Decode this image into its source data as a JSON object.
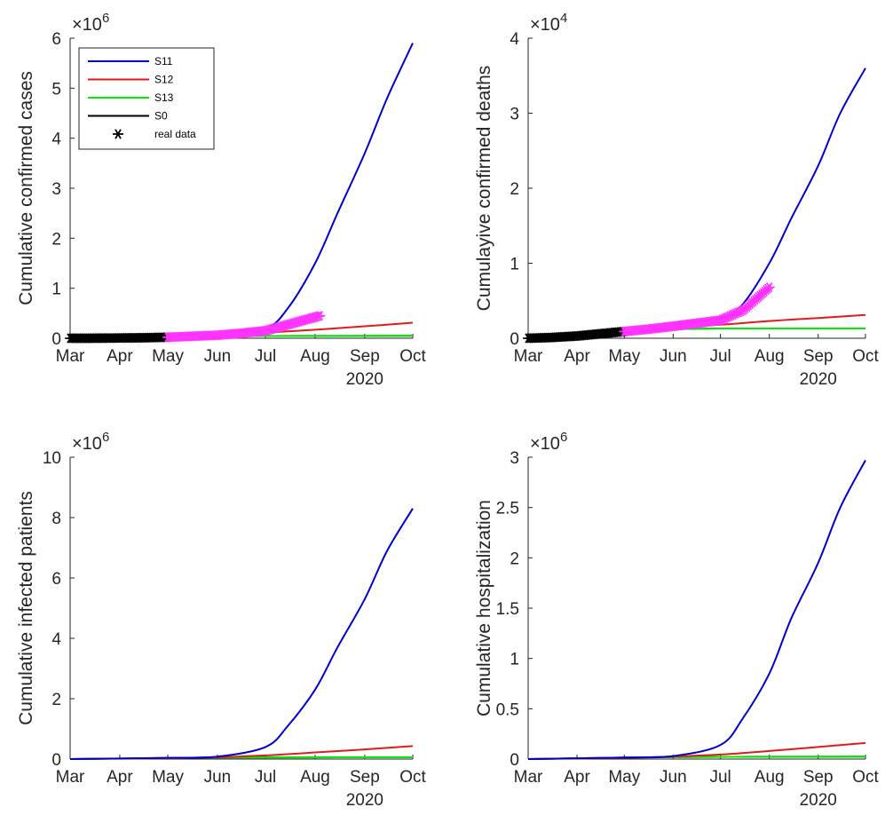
{
  "colors": {
    "S11": "#0000cc",
    "S12": "#e41a1a",
    "S13": "#00ee00",
    "S0": "#000000",
    "real_before": "#000000",
    "real_after": "#ff33ff",
    "axis": "#262626"
  },
  "legend": {
    "entries": [
      {
        "label": "S11",
        "color": "#0000cc",
        "kind": "line"
      },
      {
        "label": "S12",
        "color": "#e41a1a",
        "kind": "line"
      },
      {
        "label": "S13",
        "color": "#00ee00",
        "kind": "line"
      },
      {
        "label": "S0",
        "color": "#000000",
        "kind": "line"
      },
      {
        "label": "real data",
        "color": "#000000",
        "kind": "marker"
      }
    ],
    "location": "top-left of first panel"
  },
  "chart_data": [
    {
      "type": "line",
      "ylabel": "Cumulative confirmed cases",
      "exponent": "6",
      "xlabel": "2020",
      "x_ticks": [
        "Mar",
        "Apr",
        "May",
        "Jun",
        "Jul",
        "Aug",
        "Sep",
        "Oct"
      ],
      "xlim": [
        "2020-03-01",
        "2020-10-01"
      ],
      "ylim": [
        0,
        6
      ],
      "y_ticks": [
        "0",
        "1",
        "2",
        "3",
        "4",
        "5",
        "6"
      ],
      "series": [
        {
          "name": "S11",
          "x": [
            "2020-03-01",
            "2020-05-01",
            "2020-06-01",
            "2020-07-01",
            "2020-07-15",
            "2020-08-01",
            "2020-08-15",
            "2020-09-01",
            "2020-09-15",
            "2020-10-01"
          ],
          "y": [
            0,
            0.02,
            0.07,
            0.2,
            0.6,
            1.5,
            2.5,
            3.7,
            4.8,
            5.9
          ]
        },
        {
          "name": "S12",
          "x": [
            "2020-03-01",
            "2020-05-01",
            "2020-06-01",
            "2020-07-01",
            "2020-08-01",
            "2020-09-01",
            "2020-10-01"
          ],
          "y": [
            0,
            0.02,
            0.06,
            0.11,
            0.17,
            0.24,
            0.31
          ]
        },
        {
          "name": "S13",
          "x": [
            "2020-03-01",
            "2020-06-01",
            "2020-10-01"
          ],
          "y": [
            0,
            0.04,
            0.05
          ]
        },
        {
          "name": "S0",
          "x": [
            "2020-03-01",
            "2020-06-01",
            "2020-10-01"
          ],
          "y": [
            0,
            0.04,
            0.05
          ]
        }
      ],
      "real_data": {
        "before": {
          "x": [
            "2020-03-01",
            "2020-03-16",
            "2020-04-01",
            "2020-04-16",
            "2020-05-01"
          ],
          "y": [
            0,
            0.001,
            0.005,
            0.01,
            0.02
          ]
        },
        "after": {
          "x": [
            "2020-05-01",
            "2020-05-16",
            "2020-06-01",
            "2020-06-16",
            "2020-07-01",
            "2020-07-16",
            "2020-08-04"
          ],
          "y": [
            0.02,
            0.04,
            0.06,
            0.1,
            0.15,
            0.28,
            0.45
          ]
        }
      }
    },
    {
      "type": "line",
      "ylabel": "Cumulayive confirmed deaths",
      "exponent": "4",
      "xlabel": "2020",
      "x_ticks": [
        "Mar",
        "Apr",
        "May",
        "Jun",
        "Jul",
        "Aug",
        "Sep",
        "Oct"
      ],
      "xlim": [
        "2020-03-01",
        "2020-10-01"
      ],
      "ylim": [
        0,
        4
      ],
      "y_ticks": [
        "0",
        "1",
        "2",
        "3",
        "4"
      ],
      "series": [
        {
          "name": "S11",
          "x": [
            "2020-03-01",
            "2020-05-01",
            "2020-06-01",
            "2020-07-01",
            "2020-07-15",
            "2020-08-01",
            "2020-08-15",
            "2020-09-01",
            "2020-09-15",
            "2020-10-01"
          ],
          "y": [
            0,
            0.09,
            0.17,
            0.25,
            0.45,
            1.0,
            1.6,
            2.3,
            3.0,
            3.6
          ]
        },
        {
          "name": "S12",
          "x": [
            "2020-03-01",
            "2020-05-01",
            "2020-06-01",
            "2020-07-01",
            "2020-08-01",
            "2020-09-01",
            "2020-10-01"
          ],
          "y": [
            0,
            0.09,
            0.15,
            0.18,
            0.23,
            0.27,
            0.31
          ]
        },
        {
          "name": "S13",
          "x": [
            "2020-03-01",
            "2020-05-01",
            "2020-06-01",
            "2020-07-01",
            "2020-10-01"
          ],
          "y": [
            0,
            0.09,
            0.12,
            0.13,
            0.13
          ]
        },
        {
          "name": "S0",
          "x": [
            "2020-03-01",
            "2020-05-01",
            "2020-06-01",
            "2020-07-01",
            "2020-10-01"
          ],
          "y": [
            0,
            0.09,
            0.12,
            0.13,
            0.13
          ]
        }
      ],
      "real_data": {
        "before": {
          "x": [
            "2020-03-01",
            "2020-03-16",
            "2020-04-01",
            "2020-04-16",
            "2020-05-01"
          ],
          "y": [
            0,
            0.01,
            0.03,
            0.06,
            0.09
          ]
        },
        "after": {
          "x": [
            "2020-05-01",
            "2020-05-16",
            "2020-06-01",
            "2020-06-16",
            "2020-07-01",
            "2020-07-16",
            "2020-08-01"
          ],
          "y": [
            0.09,
            0.12,
            0.16,
            0.2,
            0.24,
            0.38,
            0.68
          ]
        }
      }
    },
    {
      "type": "line",
      "ylabel": "Cumulative infected patients",
      "exponent": "6",
      "xlabel": "2020",
      "x_ticks": [
        "Mar",
        "Apr",
        "May",
        "Jun",
        "Jul",
        "Aug",
        "Sep",
        "Oct"
      ],
      "xlim": [
        "2020-03-01",
        "2020-10-01"
      ],
      "ylim": [
        0,
        10
      ],
      "y_ticks": [
        "0",
        "2",
        "4",
        "6",
        "8",
        "10"
      ],
      "series": [
        {
          "name": "S11",
          "x": [
            "2020-03-01",
            "2020-05-01",
            "2020-06-01",
            "2020-07-01",
            "2020-07-15",
            "2020-08-01",
            "2020-08-15",
            "2020-09-01",
            "2020-09-15",
            "2020-10-01"
          ],
          "y": [
            0,
            0.04,
            0.08,
            0.4,
            1.1,
            2.3,
            3.7,
            5.3,
            6.9,
            8.3
          ]
        },
        {
          "name": "S12",
          "x": [
            "2020-03-01",
            "2020-05-01",
            "2020-06-01",
            "2020-07-01",
            "2020-08-01",
            "2020-09-01",
            "2020-10-01"
          ],
          "y": [
            0,
            0.03,
            0.06,
            0.12,
            0.22,
            0.32,
            0.43
          ]
        },
        {
          "name": "S13",
          "x": [
            "2020-03-01",
            "2020-06-01",
            "2020-10-01"
          ],
          "y": [
            0,
            0.05,
            0.06
          ]
        },
        {
          "name": "S0",
          "x": [
            "2020-03-01",
            "2020-06-01",
            "2020-10-01"
          ],
          "y": [
            0,
            0.05,
            0.06
          ]
        }
      ]
    },
    {
      "type": "line",
      "ylabel": "Cumulative hospitalization",
      "exponent": "6",
      "xlabel": "2020",
      "x_ticks": [
        "Mar",
        "Apr",
        "May",
        "Jun",
        "Jul",
        "Aug",
        "Sep",
        "Oct"
      ],
      "xlim": [
        "2020-03-01",
        "2020-10-01"
      ],
      "ylim": [
        0,
        3
      ],
      "y_ticks": [
        "0",
        "0.5",
        "1",
        "1.5",
        "2",
        "2.5",
        "3"
      ],
      "series": [
        {
          "name": "S11",
          "x": [
            "2020-03-01",
            "2020-05-01",
            "2020-06-01",
            "2020-07-01",
            "2020-07-15",
            "2020-08-01",
            "2020-08-15",
            "2020-09-01",
            "2020-09-15",
            "2020-10-01"
          ],
          "y": [
            0,
            0.015,
            0.03,
            0.14,
            0.4,
            0.85,
            1.4,
            1.95,
            2.5,
            2.97
          ]
        },
        {
          "name": "S12",
          "x": [
            "2020-03-01",
            "2020-05-01",
            "2020-06-01",
            "2020-07-01",
            "2020-08-01",
            "2020-09-01",
            "2020-10-01"
          ],
          "y": [
            0,
            0.012,
            0.025,
            0.045,
            0.08,
            0.12,
            0.16
          ]
        },
        {
          "name": "S13",
          "x": [
            "2020-03-01",
            "2020-06-01",
            "2020-10-01"
          ],
          "y": [
            0,
            0.02,
            0.025
          ]
        },
        {
          "name": "S0",
          "x": [
            "2020-03-01",
            "2020-06-01",
            "2020-10-01"
          ],
          "y": [
            0,
            0.02,
            0.025
          ]
        }
      ]
    }
  ]
}
